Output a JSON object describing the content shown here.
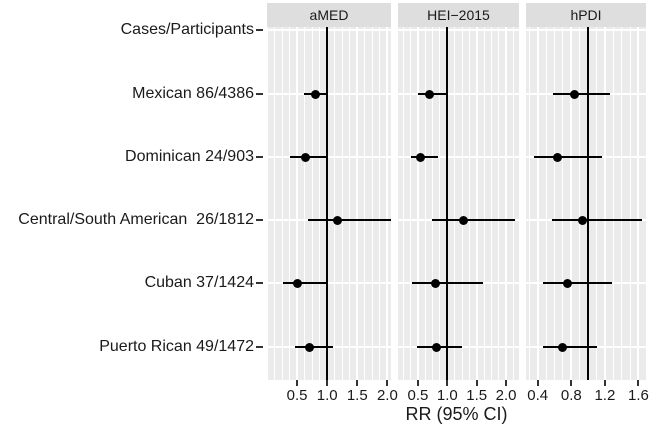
{
  "chart_data": {
    "type": "scatter",
    "variant": "forest-plot (point estimate + 95% CI, faceted)",
    "xlabel": "RR (95% CI)",
    "reference_line": 1.0,
    "grid": "on",
    "rows": [
      "Cases/Participants",
      "Mexican 86/4386",
      "Dominican 24/903",
      "Central/South American  26/1812",
      "Cuban 37/1424",
      "Puerto Rican 49/1472"
    ],
    "panels": [
      {
        "label": "aMED",
        "ticks": [
          0.5,
          1.0,
          1.5,
          2.0
        ],
        "xlim": [
          0.0,
          2.06
        ],
        "minor_step": 0.125,
        "estimates": [
          null,
          {
            "rr": 0.81,
            "lo": 0.62,
            "hi": 1.02
          },
          {
            "rr": 0.64,
            "lo": 0.38,
            "hi": 1.0
          },
          {
            "rr": 1.17,
            "lo": 0.68,
            "hi": 2.06
          },
          {
            "rr": 0.51,
            "lo": 0.26,
            "hi": 0.99
          },
          {
            "rr": 0.71,
            "lo": 0.46,
            "hi": 1.09
          }
        ]
      },
      {
        "label": "HEI−2015",
        "ticks": [
          0.5,
          1.0,
          1.5,
          2.0
        ],
        "xlim": [
          0.16,
          2.22
        ],
        "minor_step": 0.125,
        "estimates": [
          null,
          {
            "rr": 0.7,
            "lo": 0.5,
            "hi": 0.99
          },
          {
            "rr": 0.55,
            "lo": 0.38,
            "hi": 0.84
          },
          {
            "rr": 1.27,
            "lo": 0.74,
            "hi": 2.15
          },
          {
            "rr": 0.79,
            "lo": 0.4,
            "hi": 1.61
          },
          {
            "rr": 0.82,
            "lo": 0.48,
            "hi": 1.25
          }
        ]
      },
      {
        "label": "hPDI",
        "ticks": [
          0.4,
          0.8,
          1.2,
          1.6
        ],
        "xlim": [
          0.26,
          1.69
        ],
        "minor_step": 0.1,
        "estimates": [
          null,
          {
            "rr": 0.84,
            "lo": 0.58,
            "hi": 1.26
          },
          {
            "rr": 0.63,
            "lo": 0.36,
            "hi": 1.17
          },
          {
            "rr": 0.93,
            "lo": 0.57,
            "hi": 1.64
          },
          {
            "rr": 0.75,
            "lo": 0.46,
            "hi": 1.29
          },
          {
            "rr": 0.7,
            "lo": 0.46,
            "hi": 1.11
          }
        ]
      }
    ],
    "colors": {
      "panel_bg": "#ebebeb",
      "strip_bg": "#dedede",
      "grid": "#ffffff",
      "data": "#000000",
      "text": "#1a1a1a"
    }
  }
}
